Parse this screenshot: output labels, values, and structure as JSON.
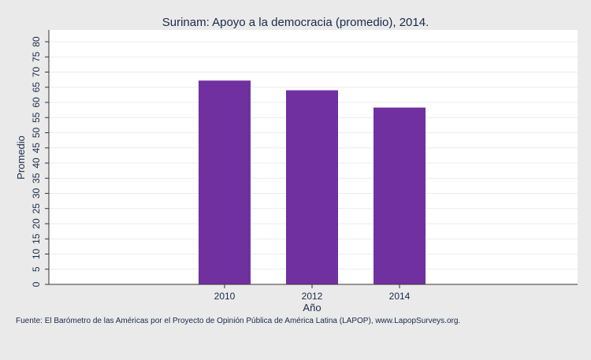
{
  "chart_data": {
    "type": "bar",
    "title": "Surinam: Apoyo a la democracia (promedio), 2014.",
    "xlabel": "Año",
    "ylabel": "Promedio",
    "categories": [
      "2010",
      "2012",
      "2014"
    ],
    "values": [
      67.2,
      64.0,
      58.3
    ],
    "ylim": [
      0,
      80
    ],
    "yticks": [
      0,
      5,
      10,
      15,
      20,
      25,
      30,
      35,
      40,
      45,
      50,
      55,
      60,
      65,
      70,
      75,
      80
    ],
    "grid": true,
    "legend": "none",
    "bar_color": "#7030a0",
    "plot_background": "#ffffff",
    "page_background": "#eaeaea",
    "text_color": "#1a2a4a",
    "source_note": "Fuente: El Barómetro de las Américas por el Proyecto de Opinión Pública de América Latina (LAPOP), www.LapopSurveys.org."
  }
}
